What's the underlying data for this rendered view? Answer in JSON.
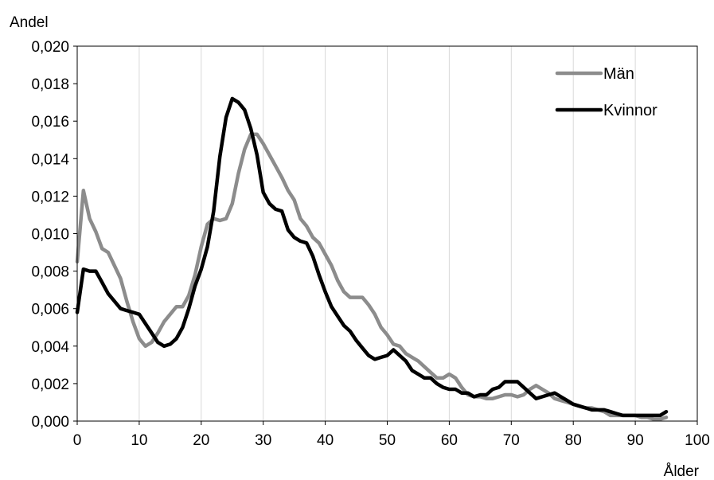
{
  "chart_data": {
    "type": "line",
    "title": "",
    "xlabel": "Ålder",
    "ylabel": "Andel",
    "xlim": [
      0,
      100
    ],
    "ylim": [
      0,
      0.02
    ],
    "x_ticks": [
      "0",
      "10",
      "20",
      "30",
      "40",
      "50",
      "60",
      "70",
      "80",
      "90",
      "100"
    ],
    "y_ticks": [
      "0,000",
      "0,002",
      "0,004",
      "0,006",
      "0,008",
      "0,010",
      "0,012",
      "0,014",
      "0,016",
      "0,018",
      "0,020"
    ],
    "grid": "vertical",
    "legend_position": "top-right",
    "series": [
      {
        "name": "Män",
        "color": "#8c8c8c",
        "x": [
          0,
          1,
          2,
          3,
          4,
          5,
          6,
          7,
          8,
          9,
          10,
          11,
          12,
          13,
          14,
          15,
          16,
          17,
          18,
          19,
          20,
          21,
          22,
          23,
          24,
          25,
          26,
          27,
          28,
          29,
          30,
          31,
          32,
          33,
          34,
          35,
          36,
          37,
          38,
          39,
          40,
          41,
          42,
          43,
          44,
          45,
          46,
          47,
          48,
          49,
          50,
          51,
          52,
          53,
          54,
          55,
          56,
          57,
          58,
          59,
          60,
          61,
          62,
          63,
          64,
          65,
          66,
          67,
          68,
          69,
          70,
          71,
          72,
          73,
          74,
          75,
          76,
          77,
          78,
          79,
          80,
          81,
          82,
          83,
          84,
          85,
          86,
          87,
          88,
          89,
          90,
          91,
          92,
          93,
          94,
          95
        ],
        "y": [
          0.0085,
          0.0123,
          0.0108,
          0.0101,
          0.0092,
          0.009,
          0.0083,
          0.0076,
          0.0064,
          0.0053,
          0.0044,
          0.004,
          0.0042,
          0.0047,
          0.0053,
          0.0057,
          0.0061,
          0.0061,
          0.0067,
          0.0078,
          0.0093,
          0.0105,
          0.0108,
          0.0107,
          0.0108,
          0.0116,
          0.0132,
          0.0145,
          0.0153,
          0.0153,
          0.0148,
          0.0142,
          0.0136,
          0.013,
          0.0123,
          0.0118,
          0.0108,
          0.0104,
          0.0098,
          0.0095,
          0.0089,
          0.0083,
          0.0075,
          0.0069,
          0.0066,
          0.0066,
          0.0066,
          0.0062,
          0.0057,
          0.005,
          0.0046,
          0.0041,
          0.004,
          0.0036,
          0.0034,
          0.0032,
          0.0029,
          0.0026,
          0.0023,
          0.0023,
          0.0025,
          0.0023,
          0.0018,
          0.0014,
          0.0013,
          0.0013,
          0.0012,
          0.0012,
          0.0013,
          0.0014,
          0.0014,
          0.0013,
          0.0014,
          0.0017,
          0.0019,
          0.0017,
          0.0015,
          0.0012,
          0.0011,
          0.001,
          0.0009,
          0.0008,
          0.0007,
          0.0007,
          0.0006,
          0.0005,
          0.0003,
          0.0003,
          0.0003,
          0.0003,
          0.0003,
          0.0002,
          0.0002,
          0.0001,
          0.0001,
          0.0002
        ]
      },
      {
        "name": "Kvinnor",
        "color": "#000000",
        "x": [
          0,
          1,
          2,
          3,
          4,
          5,
          6,
          7,
          8,
          9,
          10,
          11,
          12,
          13,
          14,
          15,
          16,
          17,
          18,
          19,
          20,
          21,
          22,
          23,
          24,
          25,
          26,
          27,
          28,
          29,
          30,
          31,
          32,
          33,
          34,
          35,
          36,
          37,
          38,
          39,
          40,
          41,
          42,
          43,
          44,
          45,
          46,
          47,
          48,
          49,
          50,
          51,
          52,
          53,
          54,
          55,
          56,
          57,
          58,
          59,
          60,
          61,
          62,
          63,
          64,
          65,
          66,
          67,
          68,
          69,
          70,
          71,
          72,
          73,
          74,
          75,
          76,
          77,
          78,
          79,
          80,
          81,
          82,
          83,
          84,
          85,
          86,
          87,
          88,
          89,
          90,
          91,
          92,
          93,
          94,
          95
        ],
        "y": [
          0.0058,
          0.0081,
          0.008,
          0.008,
          0.0074,
          0.0068,
          0.0064,
          0.006,
          0.0059,
          0.0058,
          0.0057,
          0.0052,
          0.0047,
          0.0042,
          0.004,
          0.0041,
          0.0044,
          0.005,
          0.006,
          0.0072,
          0.0081,
          0.0093,
          0.0112,
          0.0141,
          0.0162,
          0.0172,
          0.017,
          0.0166,
          0.0156,
          0.0142,
          0.0122,
          0.0116,
          0.0113,
          0.0112,
          0.0102,
          0.0098,
          0.0096,
          0.0095,
          0.0088,
          0.0078,
          0.0069,
          0.0061,
          0.0056,
          0.0051,
          0.0048,
          0.0043,
          0.0039,
          0.0035,
          0.0033,
          0.0034,
          0.0035,
          0.0038,
          0.0035,
          0.0032,
          0.0027,
          0.0025,
          0.0023,
          0.0023,
          0.002,
          0.0018,
          0.0017,
          0.0017,
          0.0015,
          0.0015,
          0.0013,
          0.0014,
          0.0014,
          0.0017,
          0.0018,
          0.0021,
          0.0021,
          0.0021,
          0.0018,
          0.0015,
          0.0012,
          0.0013,
          0.0014,
          0.0015,
          0.0013,
          0.0011,
          0.0009,
          0.0008,
          0.0007,
          0.0006,
          0.0006,
          0.0006,
          0.0005,
          0.0004,
          0.0003,
          0.0003,
          0.0003,
          0.0003,
          0.0003,
          0.0003,
          0.0003,
          0.0005
        ]
      }
    ]
  }
}
